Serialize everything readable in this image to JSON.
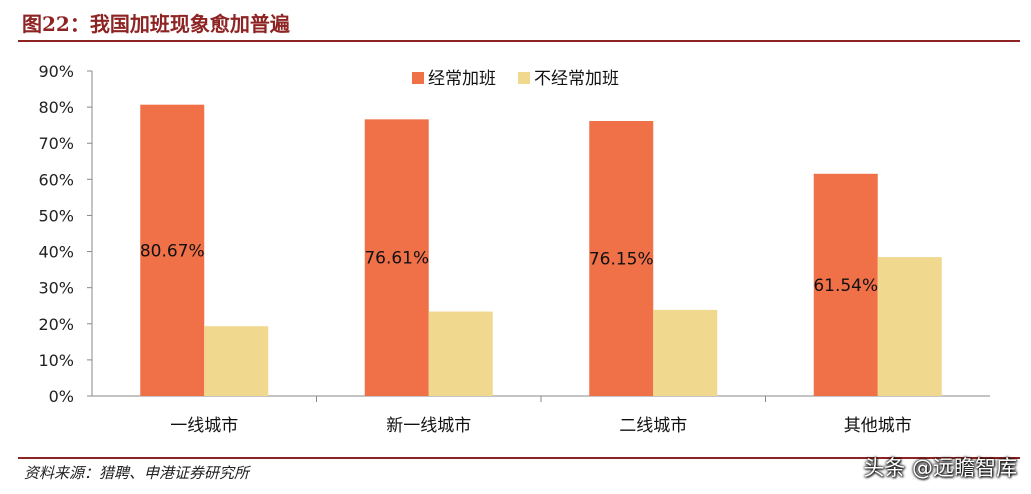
{
  "header": {
    "title": "图22：我国加班现象愈加普遍"
  },
  "footer": {
    "source": "资料来源：猎聘、申港证券研究所",
    "watermark": "头条 @远瞻智库"
  },
  "colors": {
    "series_1": "#f07048",
    "series_2": "#f0d88e",
    "brand": "#8e2323",
    "axis": "#888888"
  },
  "chart_data": {
    "type": "bar",
    "title": "",
    "xlabel": "",
    "ylabel": "",
    "categories": [
      "一线城市",
      "新一线城市",
      "二线城市",
      "其他城市"
    ],
    "series": [
      {
        "name": "经常加班",
        "values": [
          80.67,
          76.61,
          76.15,
          61.54
        ],
        "labels": [
          "80.67%",
          "76.61%",
          "76.15%",
          "61.54%"
        ]
      },
      {
        "name": "不经常加班",
        "values": [
          19.33,
          23.39,
          23.85,
          38.46
        ]
      }
    ],
    "ylim": [
      0,
      90
    ],
    "yticks": [
      "0%",
      "10%",
      "20%",
      "30%",
      "40%",
      "50%",
      "60%",
      "70%",
      "80%",
      "90%"
    ],
    "grid": false,
    "legend": "top-center"
  }
}
